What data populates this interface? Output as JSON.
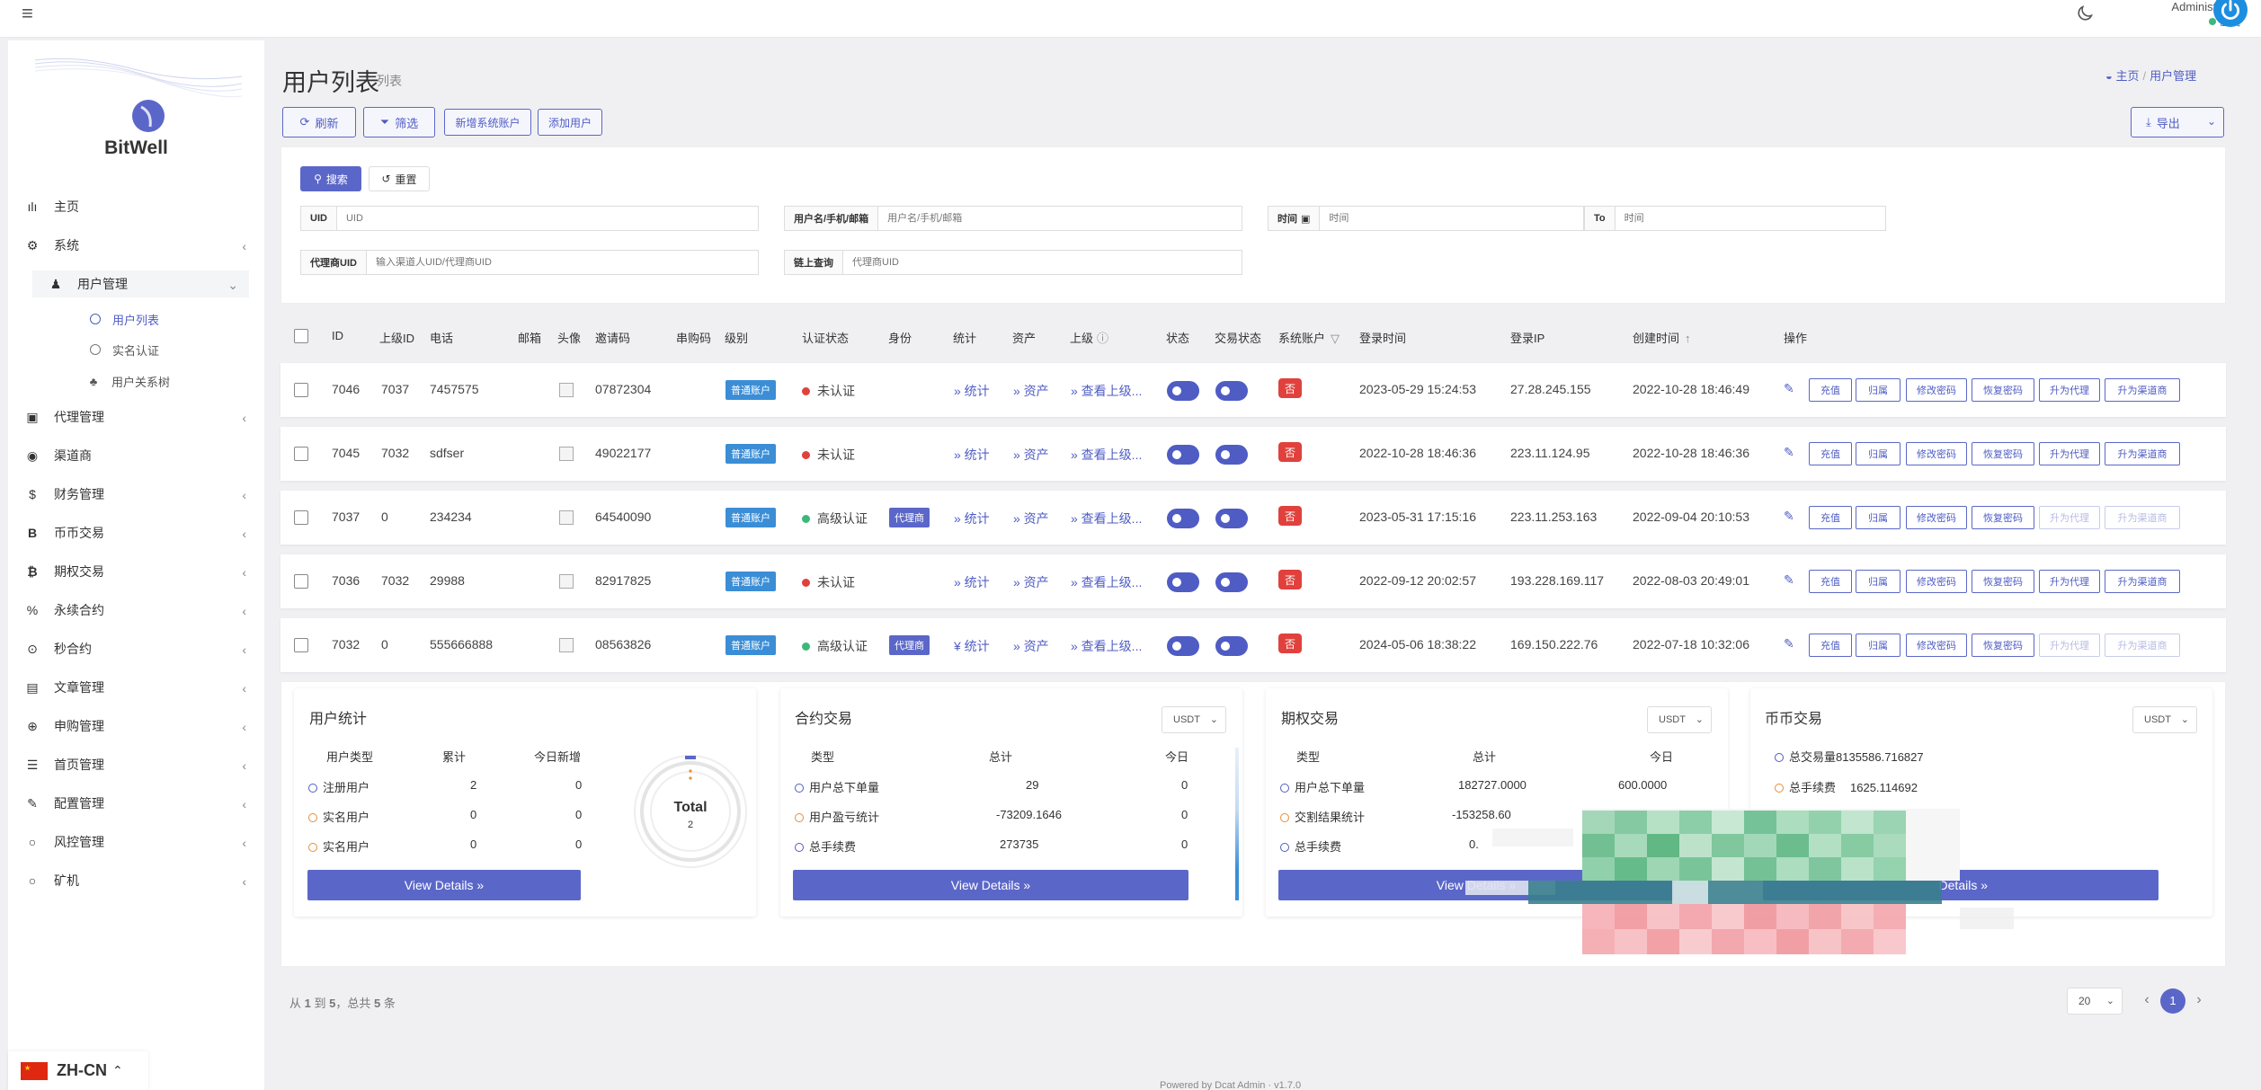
{
  "header": {
    "user_name": "Administrator",
    "user_status": "在线"
  },
  "sidebar": {
    "brand": "BitWell",
    "items": [
      {
        "label": "主页",
        "icon": "bar-chart-icon"
      },
      {
        "label": "系统",
        "icon": "gear-icon"
      },
      {
        "label": "用户管理",
        "icon": "users-icon"
      },
      {
        "label": "代理管理",
        "icon": "id-card-icon"
      },
      {
        "label": "渠道商",
        "icon": "user-circle-icon"
      },
      {
        "label": "财务管理",
        "icon": "dollar-icon"
      },
      {
        "label": "币币交易",
        "icon": "bitcoin-icon"
      },
      {
        "label": "期权交易",
        "icon": "bitcoin-icon"
      },
      {
        "label": "永续合约",
        "icon": "percent-icon"
      },
      {
        "label": "秒合约",
        "icon": "target-icon"
      },
      {
        "label": "文章管理",
        "icon": "newspaper-icon"
      },
      {
        "label": "申购管理",
        "icon": "globe-icon"
      },
      {
        "label": "首页管理",
        "icon": "list-icon"
      },
      {
        "label": "配置管理",
        "icon": "wrench-icon"
      },
      {
        "label": "风控管理",
        "icon": "circle-icon"
      },
      {
        "label": "矿机",
        "icon": "circle-icon"
      }
    ],
    "sub_items": [
      {
        "label": "用户列表"
      },
      {
        "label": "实名认证"
      },
      {
        "label": "用户关系树"
      }
    ]
  },
  "main": {
    "page_title": "用户列表",
    "page_subtitle": "列表",
    "breadcrumb": [
      "主页",
      "用户管理"
    ],
    "toolbar": {
      "refresh": "刷新",
      "filter": "筛选",
      "add_system": "新增系统账户",
      "add_user": "添加用户",
      "export": "导出"
    },
    "search": {
      "search_button": "搜索",
      "reset_button": "重置",
      "uid_label": "UID",
      "uid_placeholder": "UID",
      "user_label": "用户名/手机/邮箱",
      "user_placeholder": "用户名/手机/邮箱",
      "time_label": "时间",
      "time_placeholder": "时间",
      "to_label": "To",
      "to_placeholder": "时间",
      "agent_label": "代理商UID",
      "agent_placeholder": "输入渠道人UID/代理商UID",
      "chain_label": "链上查询",
      "chain_placeholder": "代理商UID"
    },
    "table": {
      "columns": [
        "ID",
        "上级ID",
        "电话",
        "邮箱",
        "头像",
        "邀请码",
        "串购码",
        "级别",
        "认证状态",
        "身份",
        "统计",
        "资产",
        "上级",
        "状态",
        "交易状态",
        "系统账户",
        "登录时间",
        "登录IP",
        "创建时间",
        "操作"
      ],
      "rows": [
        {
          "id": "7046",
          "parent_id": "7037",
          "phone": "7457575",
          "invite": "07872304",
          "level": "普通账户",
          "auth": "未认证",
          "auth_ok": false,
          "identity": "",
          "stats": "» 统计",
          "assets": "» 资产",
          "superior": "» 查看上级...",
          "system": "否",
          "login_time": "2023-05-29 15:24:53",
          "login_ip": "27.28.245.155",
          "created": "2022-10-28 18:46:49",
          "promote_disabled": false
        },
        {
          "id": "7045",
          "parent_id": "7032",
          "phone": "sdfser",
          "invite": "49022177",
          "level": "普通账户",
          "auth": "未认证",
          "auth_ok": false,
          "identity": "",
          "stats": "» 统计",
          "assets": "» 资产",
          "superior": "» 查看上级...",
          "system": "否",
          "login_time": "2022-10-28 18:46:36",
          "login_ip": "223.11.124.95",
          "created": "2022-10-28 18:46:36",
          "promote_disabled": false
        },
        {
          "id": "7037",
          "parent_id": "0",
          "phone": "234234",
          "invite": "64540090",
          "level": "普通账户",
          "auth": "高级认证",
          "auth_ok": true,
          "identity": "代理商",
          "stats": "» 统计",
          "assets": "» 资产",
          "superior": "» 查看上级...",
          "system": "否",
          "login_time": "2023-05-31 17:15:16",
          "login_ip": "223.11.253.163",
          "created": "2022-09-04 20:10:53",
          "promote_disabled": true
        },
        {
          "id": "7036",
          "parent_id": "7032",
          "phone": "29988",
          "invite": "82917825",
          "level": "普通账户",
          "auth": "未认证",
          "auth_ok": false,
          "identity": "",
          "stats": "» 统计",
          "assets": "» 资产",
          "superior": "» 查看上级...",
          "system": "否",
          "login_time": "2022-09-12 20:02:57",
          "login_ip": "193.228.169.117",
          "created": "2022-08-03 20:49:01",
          "promote_disabled": false
        },
        {
          "id": "7032",
          "parent_id": "0",
          "phone": "555666888",
          "invite": "08563826",
          "level": "普通账户",
          "auth": "高级认证",
          "auth_ok": true,
          "identity": "代理商",
          "stats": "¥ 统计",
          "assets": "» 资产",
          "superior": "» 查看上级...",
          "system": "否",
          "login_time": "2024-05-06 18:38:22",
          "login_ip": "169.150.222.76",
          "created": "2022-07-18 10:32:06",
          "promote_disabled": true
        }
      ],
      "actions": [
        "充值",
        "归属",
        "修改密码",
        "恢复密码",
        "升为代理",
        "升为渠道商"
      ]
    },
    "stats": {
      "user_stats": {
        "title": "用户统计",
        "headers": [
          "用户类型",
          "累计",
          "今日新增"
        ],
        "rows": [
          {
            "label": "注册用户",
            "total": "2",
            "today": "0"
          },
          {
            "label": "实名用户",
            "total": "0",
            "today": "0"
          },
          {
            "label": "实名用户",
            "total": "0",
            "today": "0"
          }
        ],
        "donut_label": "Total",
        "donut_value": "2",
        "view": "View Details »"
      },
      "contract": {
        "title": "合约交易",
        "currency": "USDT",
        "headers": [
          "类型",
          "总计",
          "今日"
        ],
        "rows": [
          {
            "label": "用户总下单量",
            "total": "29",
            "today": "0"
          },
          {
            "label": "用户盈亏统计",
            "total": "-73209.1646",
            "today": "0"
          },
          {
            "label": "总手续费",
            "total": "273735",
            "today": "0"
          }
        ],
        "view": "View Details »"
      },
      "options": {
        "title": "期权交易",
        "currency": "USDT",
        "headers": [
          "类型",
          "总计",
          "今日"
        ],
        "rows": [
          {
            "label": "用户总下单量",
            "total": "182727.0000",
            "today": "600.0000"
          },
          {
            "label": "交割结果统计",
            "total": "-153258.60",
            "today": ""
          },
          {
            "label": "总手续费",
            "total": "0.",
            "today": ""
          }
        ],
        "view": "View Details »"
      },
      "spot": {
        "title": "币币交易",
        "currency": "USDT",
        "rows": [
          {
            "label": "总交易量",
            "value": "8135586.716827"
          },
          {
            "label": "总手续费",
            "value": "1625.114692"
          }
        ],
        "view": "Details »"
      }
    },
    "pagination": {
      "summary_from": "从",
      "summary_a": "1",
      "summary_to": "到",
      "summary_b": "5",
      "summary_total_label": "，总共",
      "summary_total": "5",
      "summary_unit": "条",
      "per_page": "20",
      "current_page": "1",
      "prev": "‹",
      "next": "›"
    },
    "footer": "Powered by Dcat Admin · v1.7.0"
  },
  "lang": {
    "code": "ZH-CN"
  },
  "colors": {
    "accent": "#5b67c8",
    "danger": "#e0413c",
    "success": "#3cb878",
    "info": "#3b8ed6"
  }
}
